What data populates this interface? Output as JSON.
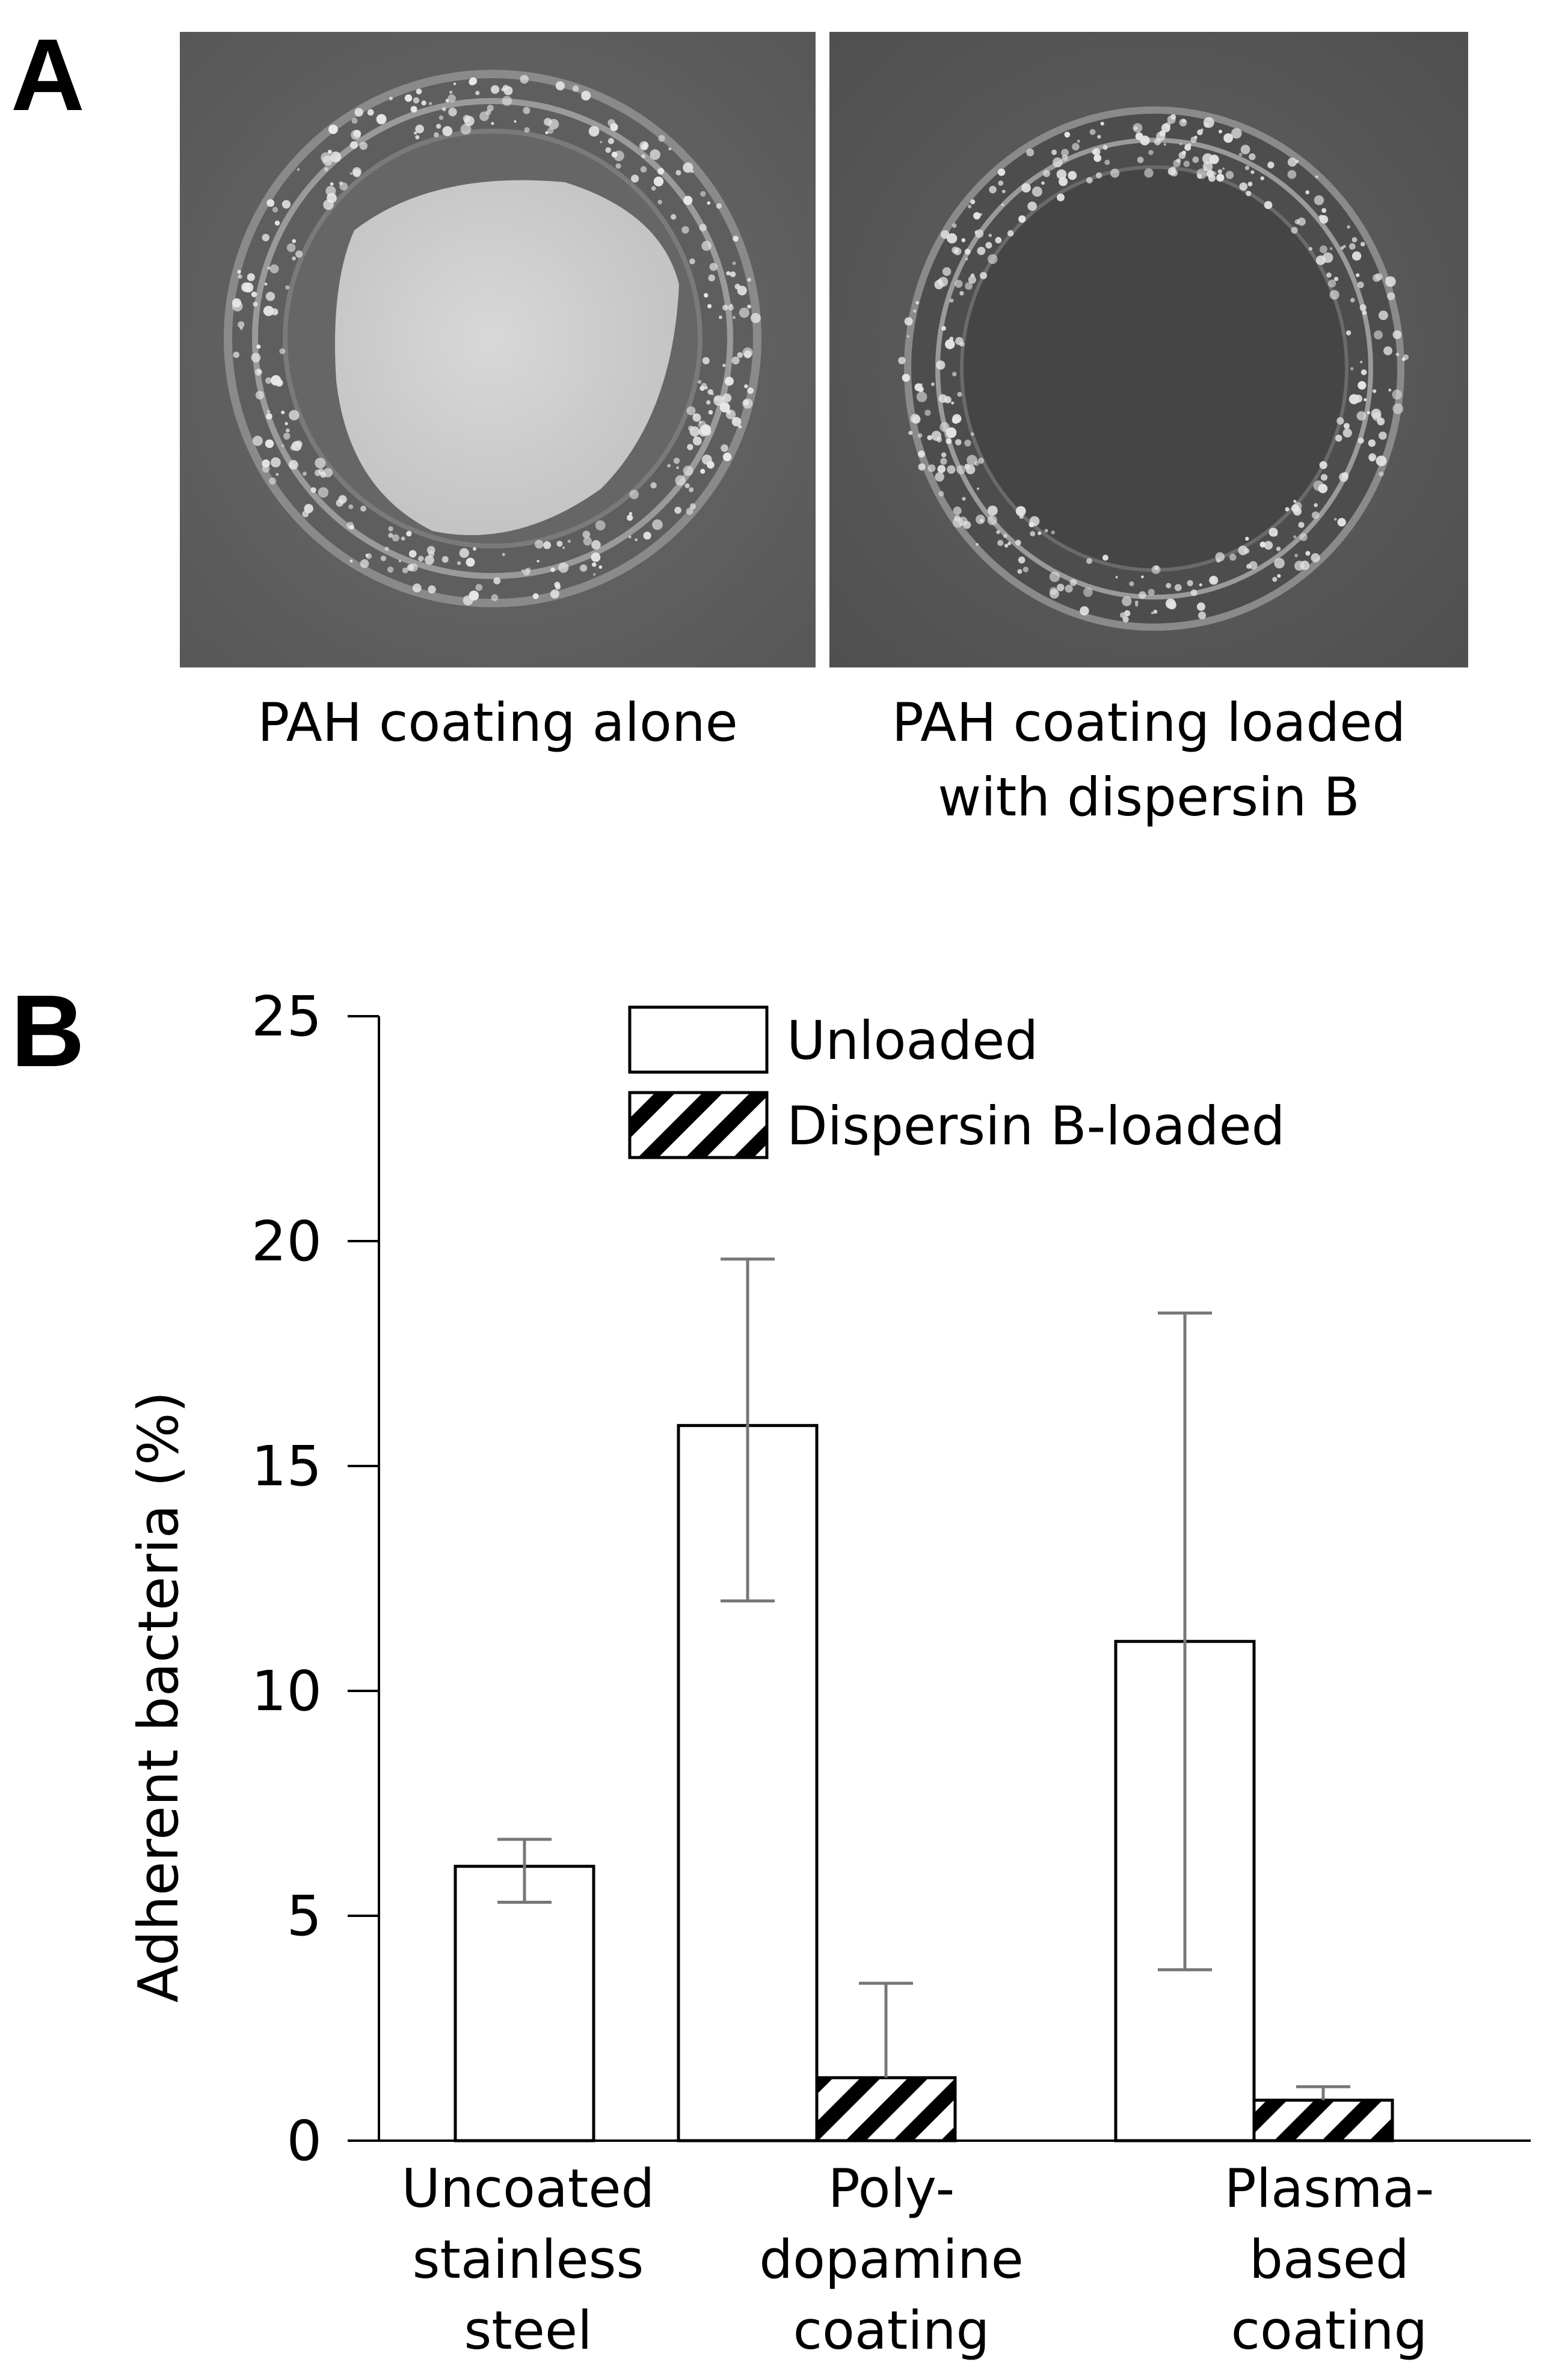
{
  "panels": {
    "a": {
      "letter": "A",
      "images": [
        {
          "caption": "PAH coating alone",
          "depicts": "round sample with bright coating center and bubbly ring"
        },
        {
          "caption": "PAH coating loaded\nwith dispersin B",
          "depicts": "round sample with dark center and bubbly ring"
        }
      ]
    },
    "b": {
      "letter": "B"
    }
  },
  "chart_data": {
    "type": "bar",
    "title": "",
    "xlabel": "",
    "ylabel": "Adherent bacteria (%)",
    "ylim": [
      0,
      25
    ],
    "yticks": [
      0,
      5,
      10,
      15,
      20,
      25
    ],
    "grid": false,
    "legend_position": "top-center",
    "categories": [
      "Uncoated\nstainless\nsteel",
      "Poly-\ndopamine\ncoating",
      "Plasma-\nbased\ncoating"
    ],
    "series": [
      {
        "name": "Unloaded",
        "pattern": "open",
        "values": [
          6.1,
          15.9,
          11.1
        ],
        "error_low": [
          5.3,
          12.0,
          3.8
        ],
        "error_high": [
          6.7,
          19.6,
          18.4
        ]
      },
      {
        "name": "Dispersin B-loaded",
        "pattern": "hatched",
        "values": [
          null,
          1.4,
          0.9
        ],
        "error_low": [
          null,
          1.4,
          0.9
        ],
        "error_high": [
          null,
          3.5,
          1.2
        ]
      }
    ],
    "colors": {
      "bar_fill": "#ffffff",
      "bar_stroke": "#000000",
      "hatch": "#000000",
      "error_bar": "#777777"
    }
  }
}
